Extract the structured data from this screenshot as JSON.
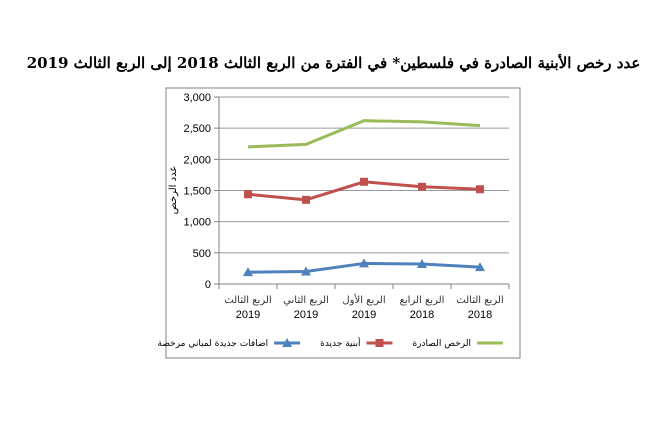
{
  "chart_data": {
    "type": "line",
    "title": "عدد رخص الأبنية الصادرة في فلسطين* في الفترة من الربع الثالث 2018 إلى الربع الثالث 2019",
    "ylabel": "عدد الرخص",
    "xlabel": "",
    "ylim": [
      0,
      3000
    ],
    "yticks": [
      0,
      500,
      1000,
      1500,
      2000,
      2500,
      3000
    ],
    "ytick_labels": [
      "0",
      "500",
      "1,000",
      "1,500",
      "2,000",
      "2,500",
      "3,000"
    ],
    "categories": [
      {
        "quarter": "الربع الثالث",
        "year": "2018"
      },
      {
        "quarter": "الربع الرابع",
        "year": "2018"
      },
      {
        "quarter": "الربع الأول",
        "year": "2019"
      },
      {
        "quarter": "الربع الثاني",
        "year": "2019"
      },
      {
        "quarter": "الربع الثالث",
        "year": "2019"
      }
    ],
    "grid": "horizontal",
    "legend_position": "bottom",
    "series": [
      {
        "name": "الرخص الصادرة",
        "color": "#9bbb59",
        "marker": "none",
        "values": [
          2540,
          2600,
          2620,
          2240,
          2200
        ]
      },
      {
        "name": "أبنية جديدة",
        "color": "#c0504d",
        "marker": "square",
        "values": [
          1520,
          1560,
          1640,
          1350,
          1440
        ]
      },
      {
        "name": "اضافات جديدة لمباني مرخصة",
        "color": "#4f81bd",
        "marker": "triangle",
        "values": [
          270,
          320,
          330,
          200,
          190
        ]
      }
    ]
  }
}
